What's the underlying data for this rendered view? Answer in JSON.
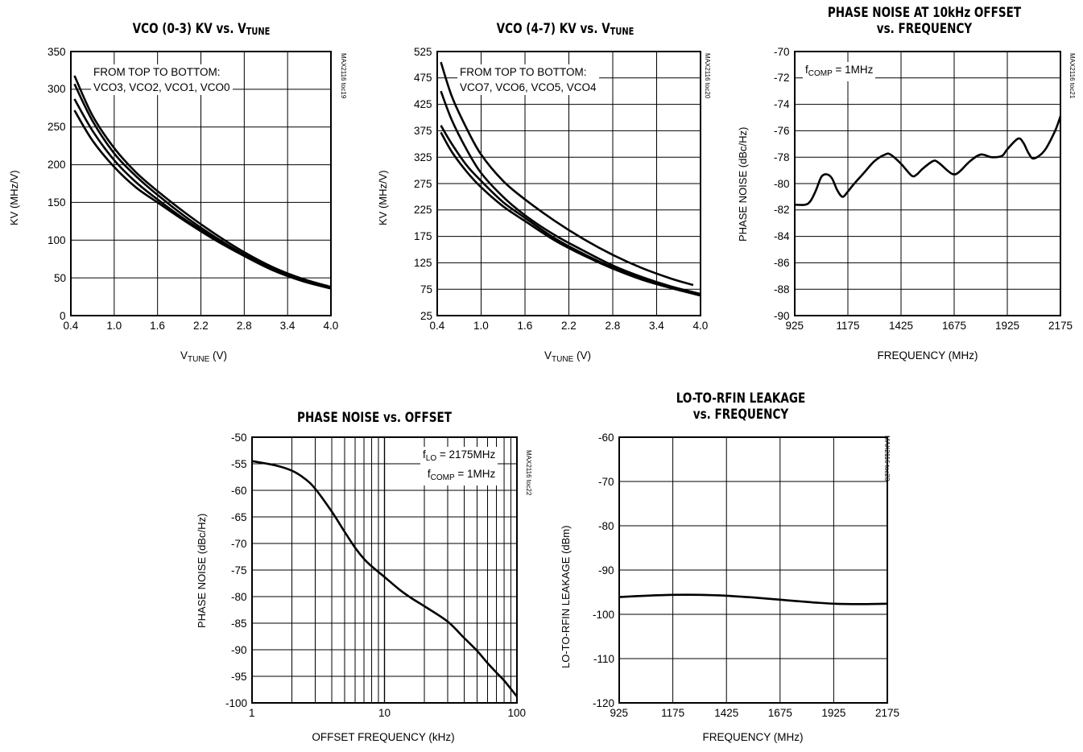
{
  "chart_data": [
    {
      "type": "line",
      "title_line1": "VCO (0-3) KV vs. V",
      "title_sub": "TUNE",
      "xlabel_main": "V",
      "xlabel_sub": "TUNE",
      "xlabel_unit": " (V)",
      "ylabel": "KV (MHz/V)",
      "side_id": "MAX2116 toc19",
      "annotation": [
        "FROM TOP TO BOTTOM:",
        "VCO3, VCO2, VCO1, VCO0"
      ],
      "xlim": [
        0.4,
        4.0
      ],
      "ylim": [
        0,
        350
      ],
      "xticks": [
        0.4,
        1.0,
        1.6,
        2.2,
        2.8,
        3.4,
        4.0
      ],
      "xtick_labels": [
        "0.4",
        "1.0",
        "1.6",
        "2.2",
        "2.8",
        "3.4",
        "4.0"
      ],
      "yticks": [
        0,
        50,
        100,
        150,
        200,
        250,
        300,
        350
      ],
      "ytick_labels": [
        "0",
        "50",
        "100",
        "150",
        "200",
        "250",
        "300",
        "350"
      ],
      "grid": true,
      "series": [
        {
          "x": [
            0.45,
            0.7,
            1.0,
            1.3,
            1.6,
            2.0,
            2.4,
            2.8,
            3.2,
            3.6,
            4.0
          ],
          "y": [
            318,
            265,
            222,
            190,
            165,
            135,
            108,
            84,
            64,
            49,
            38
          ]
        },
        {
          "x": [
            0.45,
            0.7,
            1.0,
            1.3,
            1.6,
            2.0,
            2.4,
            2.8,
            3.2,
            3.6,
            4.0
          ],
          "y": [
            307,
            258,
            215,
            185,
            160,
            130,
            104,
            81,
            62,
            47,
            37
          ]
        },
        {
          "x": [
            0.45,
            0.7,
            1.0,
            1.3,
            1.6,
            2.0,
            2.4,
            2.8,
            3.2,
            3.6,
            4.0
          ],
          "y": [
            287,
            245,
            206,
            177,
            154,
            126,
            102,
            80,
            61,
            46,
            36
          ]
        },
        {
          "x": [
            0.45,
            0.7,
            1.0,
            1.3,
            1.6,
            2.0,
            2.4,
            2.8,
            3.2,
            3.6,
            4.0
          ],
          "y": [
            272,
            232,
            197,
            170,
            150,
            124,
            100,
            79,
            60,
            46,
            36
          ]
        }
      ]
    },
    {
      "type": "line",
      "title_line1": "VCO (4-7) KV vs. V",
      "title_sub": "TUNE",
      "xlabel_main": "V",
      "xlabel_sub": "TUNE",
      "xlabel_unit": " (V)",
      "ylabel": "KV (MHz/V)",
      "side_id": "MAX2116 toc20",
      "annotation": [
        "FROM TOP TO BOTTOM:",
        "VCO7, VCO6, VCO5, VCO4"
      ],
      "xlim": [
        0.4,
        4.0
      ],
      "ylim": [
        25,
        525
      ],
      "xticks": [
        0.4,
        1.0,
        1.6,
        2.2,
        2.8,
        3.4,
        4.0
      ],
      "xtick_labels": [
        "0.4",
        "1.0",
        "1.6",
        "2.2",
        "2.8",
        "3.4",
        "4.0"
      ],
      "yticks": [
        25,
        75,
        125,
        175,
        225,
        275,
        325,
        375,
        425,
        475,
        525
      ],
      "ytick_labels": [
        "25",
        "75",
        "125",
        "175",
        "225",
        "275",
        "325",
        "375",
        "425",
        "475",
        "525"
      ],
      "grid": true,
      "series": [
        {
          "x": [
            0.45,
            0.6,
            0.8,
            1.0,
            1.3,
            1.6,
            2.0,
            2.4,
            2.8,
            3.2,
            3.6,
            3.9
          ],
          "y": [
            505,
            440,
            380,
            330,
            280,
            245,
            205,
            170,
            140,
            115,
            95,
            83
          ]
        },
        {
          "x": [
            0.45,
            0.6,
            0.8,
            1.0,
            1.3,
            1.6,
            2.0,
            2.4,
            2.8,
            3.2,
            3.6,
            4.0
          ],
          "y": [
            450,
            395,
            340,
            295,
            250,
            215,
            178,
            148,
            120,
            98,
            80,
            66
          ]
        },
        {
          "x": [
            0.45,
            0.6,
            0.8,
            1.0,
            1.3,
            1.6,
            2.0,
            2.4,
            2.8,
            3.2,
            3.6,
            4.0
          ],
          "y": [
            385,
            350,
            310,
            280,
            240,
            210,
            172,
            142,
            116,
            95,
            78,
            64
          ]
        },
        {
          "x": [
            0.45,
            0.6,
            0.8,
            1.0,
            1.3,
            1.6,
            2.0,
            2.4,
            2.8,
            3.2,
            3.6,
            4.0
          ],
          "y": [
            372,
            335,
            298,
            268,
            232,
            204,
            168,
            139,
            114,
            93,
            77,
            63
          ]
        }
      ]
    },
    {
      "type": "line",
      "title_line1": "PHASE NOISE AT 10kHz OFFSET",
      "title_line2": "vs. FREQUENCY",
      "xlabel": "FREQUENCY (MHz)",
      "ylabel": "PHASE NOISE (dBc/Hz)",
      "side_id": "MAX2116 toc21",
      "annotation_main": "f",
      "annotation_sub": "COMP",
      "annotation_rest": " = 1MHz",
      "xlim": [
        925,
        2175
      ],
      "ylim": [
        -90,
        -70
      ],
      "xticks": [
        925,
        1175,
        1425,
        1675,
        1925,
        2175
      ],
      "xtick_labels": [
        "925",
        "1175",
        "1425",
        "1675",
        "1925",
        "2175"
      ],
      "yticks": [
        -90,
        -88,
        -86,
        -84,
        -82,
        -80,
        -78,
        -76,
        -74,
        -72,
        -70
      ],
      "ytick_labels": [
        "-90",
        "-88",
        "-86",
        "-84",
        "-82",
        "-80",
        "-78",
        "-76",
        "-74",
        "-72",
        "-70"
      ],
      "grid": true,
      "series": [
        {
          "x": [
            925,
            975,
            1000,
            1025,
            1050,
            1075,
            1100,
            1125,
            1150,
            1175,
            1200,
            1250,
            1300,
            1350,
            1375,
            1425,
            1475,
            1500,
            1525,
            1575,
            1600,
            1650,
            1675,
            1700,
            1750,
            1800,
            1850,
            1900,
            1925,
            1975,
            2000,
            2025,
            2050,
            2100,
            2150,
            2175
          ],
          "y": [
            -81.6,
            -81.6,
            -81.3,
            -80.5,
            -79.5,
            -79.3,
            -79.6,
            -80.5,
            -81.0,
            -80.6,
            -80.1,
            -79.2,
            -78.3,
            -77.8,
            -77.8,
            -78.5,
            -79.4,
            -79.3,
            -78.9,
            -78.3,
            -78.4,
            -79.1,
            -79.3,
            -79.1,
            -78.3,
            -77.8,
            -78.0,
            -77.9,
            -77.4,
            -76.6,
            -76.9,
            -77.7,
            -78.1,
            -77.5,
            -76.0,
            -74.9
          ]
        }
      ]
    },
    {
      "type": "line",
      "title_line1": "PHASE NOISE vs. OFFSET",
      "xlabel": "OFFSET FREQUENCY (kHz)",
      "ylabel": "PHASE NOISE (dBc/Hz)",
      "side_id": "MAX2116 toc22",
      "annotation_l1_main": "f",
      "annotation_l1_sub": "LO",
      "annotation_l1_rest": " = 2175MHz",
      "annotation_l2_main": "f",
      "annotation_l2_sub": "COMP",
      "annotation_l2_rest": " = 1MHz",
      "xscale": "log",
      "xlim": [
        1,
        100
      ],
      "ylim": [
        -100,
        -50
      ],
      "xtick_labels": [
        "1",
        "10",
        "100"
      ],
      "yticks": [
        -100,
        -95,
        -90,
        -85,
        -80,
        -75,
        -70,
        -65,
        -60,
        -55,
        -50
      ],
      "ytick_labels": [
        "-100",
        "-95",
        "-90",
        "-85",
        "-80",
        "-75",
        "-70",
        "-65",
        "-60",
        "-55",
        "-50"
      ],
      "grid": true,
      "series": [
        {
          "x": [
            1,
            1.5,
            2,
            2.5,
            3,
            4,
            5,
            6,
            7,
            8,
            10,
            13,
            16,
            20,
            30,
            40,
            50,
            60,
            70,
            80,
            100
          ],
          "y": [
            -54.5,
            -55.3,
            -56.3,
            -57.8,
            -59.7,
            -64.0,
            -67.8,
            -70.8,
            -72.9,
            -74.3,
            -76.3,
            -78.7,
            -80.3,
            -81.8,
            -84.7,
            -87.8,
            -90.2,
            -92.5,
            -94.3,
            -95.8,
            -98.8
          ]
        }
      ]
    },
    {
      "type": "line",
      "title_line1": "LO-TO-RFIN LEAKAGE",
      "title_line2": "vs. FREQUENCY",
      "xlabel": "FREQUENCY (MHz)",
      "ylabel": "LO-TO-RFIN LEAKAGE (dBm)",
      "side_id": "MAX2116 toc23",
      "xlim": [
        925,
        2175
      ],
      "ylim": [
        -120,
        -60
      ],
      "xticks": [
        925,
        1175,
        1425,
        1675,
        1925,
        2175
      ],
      "xtick_labels": [
        "925",
        "1175",
        "1425",
        "1675",
        "1925",
        "2175"
      ],
      "yticks": [
        -120,
        -110,
        -100,
        -90,
        -80,
        -70,
        -60
      ],
      "ytick_labels": [
        "-120",
        "-110",
        "-100",
        "-90",
        "-80",
        "-70",
        "-60"
      ],
      "grid": true,
      "series": [
        {
          "x": [
            925,
            1050,
            1175,
            1300,
            1425,
            1550,
            1675,
            1800,
            1925,
            2050,
            2175
          ],
          "y": [
            -96.1,
            -95.8,
            -95.6,
            -95.6,
            -95.8,
            -96.2,
            -96.7,
            -97.2,
            -97.6,
            -97.7,
            -97.6
          ]
        }
      ]
    }
  ]
}
